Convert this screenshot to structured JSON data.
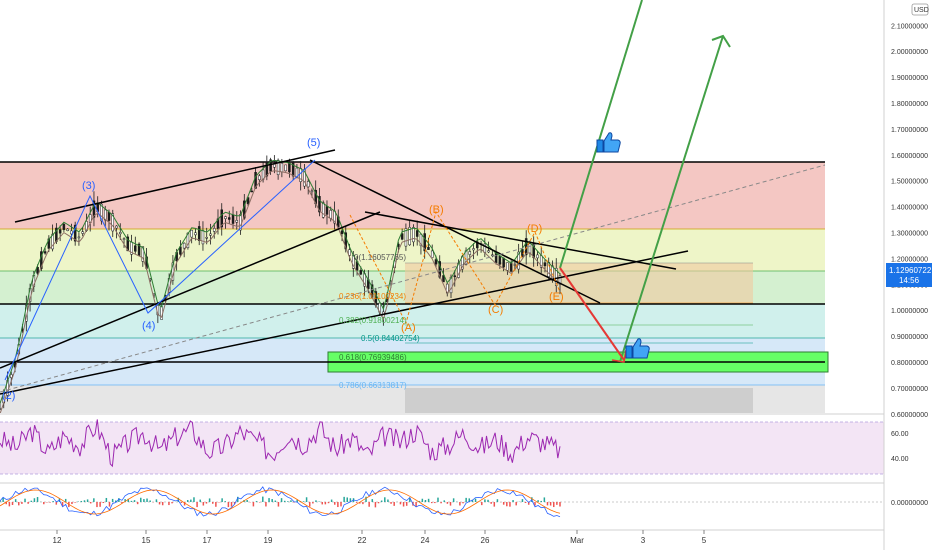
{
  "header": {
    "currency": "USD"
  },
  "price_axis": {
    "ticks": [
      "2.10000000",
      "2.00000000",
      "1.90000000",
      "1.80000000",
      "1.70000000",
      "1.60000000",
      "1.50000000",
      "1.40000000",
      "1.30000000",
      "1.20000000",
      "1.10000000",
      "1.00000000",
      "0.90000000",
      "0.80000000",
      "0.70000000",
      "0.60000000"
    ],
    "tick_values": [
      2.1,
      2.0,
      1.9,
      1.8,
      1.7,
      1.6,
      1.5,
      1.4,
      1.3,
      1.2,
      1.1,
      1.0,
      0.9,
      0.8,
      0.7,
      0.6
    ],
    "current_price": "1.12960722",
    "countdown": "14:56"
  },
  "rsi_axis": {
    "ticks": [
      "60.00",
      "40.00"
    ],
    "tick_values": [
      60,
      40
    ]
  },
  "macd_axis": {
    "ticks": [
      "0.00000000"
    ]
  },
  "time_axis": {
    "ticks": [
      "12",
      "15",
      "17",
      "19",
      "22",
      "24",
      "26",
      "Mar",
      "3",
      "5"
    ]
  },
  "fib_labels": [
    {
      "text": "0(1.16057765)"
    },
    {
      "text": "0.236(1.01100234)"
    },
    {
      "text": "0.382(0.91800214)"
    },
    {
      "text": "0.5(0.84402754)"
    },
    {
      "text": "0.618(0.76939486)"
    },
    {
      "text": "0.786(0.66313817)"
    }
  ],
  "wave_labels": [
    {
      "text": "(1)",
      "color": "#2962ff"
    },
    {
      "text": "(2)",
      "color": "#2962ff"
    },
    {
      "text": "(3)",
      "color": "#2962ff"
    },
    {
      "text": "(4)",
      "color": "#2962ff"
    },
    {
      "text": "(5)",
      "color": "#2962ff"
    },
    {
      "text": "(A)",
      "color": "#f57c00"
    },
    {
      "text": "(B)",
      "color": "#f57c00"
    },
    {
      "text": "(C)",
      "color": "#f57c00"
    },
    {
      "text": "(D)",
      "color": "#f57c00"
    },
    {
      "text": "(E)",
      "color": "#f57c00"
    }
  ],
  "icons": [
    "thumbs-up-icon",
    "thumbs-up-icon"
  ],
  "colors": {
    "candle": "#1b1b1b",
    "trendline": "#000000",
    "projection_up": "#43a047",
    "projection_down": "#e53935",
    "rsi_line": "#9c27b0",
    "zone_green": "#66ff66",
    "fib_red": "#f4c7c3",
    "fib_yellow": "#eef5c8",
    "fib_green": "#d4f0d0",
    "fib_teal": "#d0f0ec",
    "fib_blue": "#d6e8f8",
    "fib_grey": "#e6e6e6"
  },
  "chart_data": [
    {
      "type": "line",
      "title": "",
      "ylabel": "USD",
      "y_scale": "linear",
      "ylim": [
        0.55,
        2.18
      ],
      "x_ticks": [
        "12",
        "15",
        "17",
        "19",
        "22",
        "24",
        "26",
        "Mar",
        "3",
        "5"
      ],
      "series": [
        {
          "values": [
            0.62,
            0.8,
            1.1,
            1.25,
            1.32,
            1.28,
            1.4,
            1.35,
            1.25,
            1.22,
            0.97,
            1.2,
            1.3,
            1.28,
            1.36,
            1.34,
            1.5,
            1.56,
            1.55,
            1.52,
            1.4,
            1.36,
            1.2,
            1.1,
            0.98,
            1.28,
            1.3,
            1.22,
            1.08,
            1.2,
            1.26,
            1.2,
            1.16,
            1.25,
            1.18,
            1.12
          ]
        }
      ],
      "grid": false
    },
    {
      "type": "line",
      "title": "",
      "ylim": [
        30,
        75
      ],
      "y_ticks": [
        60,
        40
      ],
      "series": [
        {
          "values": [
            55,
            48,
            62,
            44,
            58,
            50,
            66,
            41,
            52,
            60,
            46,
            57,
            63,
            45,
            49,
            61,
            54,
            43,
            59,
            51,
            64,
            47,
            56,
            42,
            58,
            53,
            62,
            45,
            50,
            60,
            48,
            55,
            44,
            57,
            52,
            46
          ]
        }
      ]
    }
  ]
}
